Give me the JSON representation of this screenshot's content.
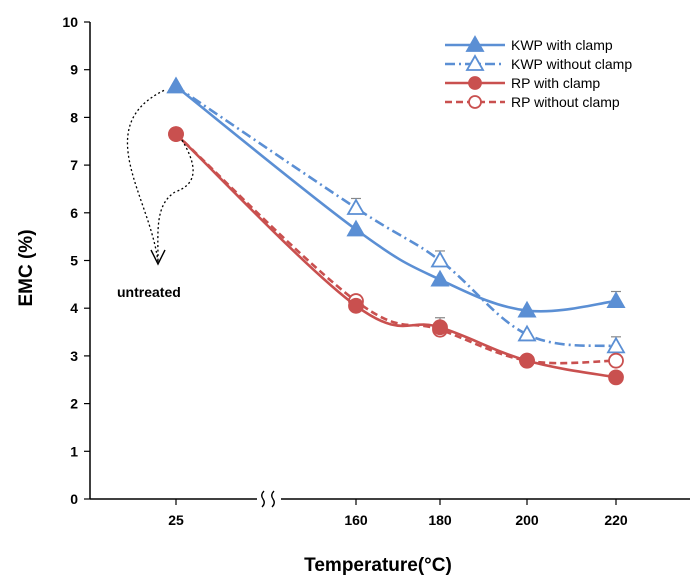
{
  "chart_data": {
    "type": "line",
    "xlabel": "Temperature(°C)",
    "ylabel": "EMC (%)",
    "ylim": [
      0,
      10
    ],
    "yticks": [
      "0",
      "1",
      "2",
      "3",
      "4",
      "5",
      "6",
      "7",
      "8",
      "9",
      "10"
    ],
    "categories": [
      "25",
      "160",
      "180",
      "200",
      "220"
    ],
    "axis_break": "between 25 and 160",
    "legend_position": "top-right",
    "series": [
      {
        "name": "KWP with clamp",
        "color": "#5b8fd4",
        "dash": "solid",
        "marker": "filled-triangle",
        "values": [
          8.65,
          5.65,
          4.6,
          3.95,
          4.15
        ],
        "error": [
          0,
          0,
          0,
          0,
          0.2
        ]
      },
      {
        "name": "KWP without clamp",
        "color": "#5b8fd4",
        "dash": "dash-dot",
        "marker": "open-triangle",
        "values": [
          8.65,
          6.1,
          5.0,
          3.45,
          3.2
        ],
        "error": [
          0,
          0.2,
          0.2,
          0,
          0.2
        ]
      },
      {
        "name": "RP with clamp",
        "color": "#c9504f",
        "dash": "solid",
        "marker": "filled-circle",
        "values": [
          7.65,
          4.05,
          3.6,
          2.9,
          2.55
        ],
        "error": [
          0,
          0,
          0.2,
          0,
          0
        ]
      },
      {
        "name": "RP without clamp",
        "color": "#c9504f",
        "dash": "dashed",
        "marker": "open-circle",
        "values": [
          7.65,
          4.15,
          3.55,
          2.9,
          2.9
        ],
        "error": [
          0,
          0,
          0,
          0,
          0
        ]
      }
    ],
    "annotations": [
      {
        "text": "untreated",
        "points_to": "25"
      }
    ]
  }
}
